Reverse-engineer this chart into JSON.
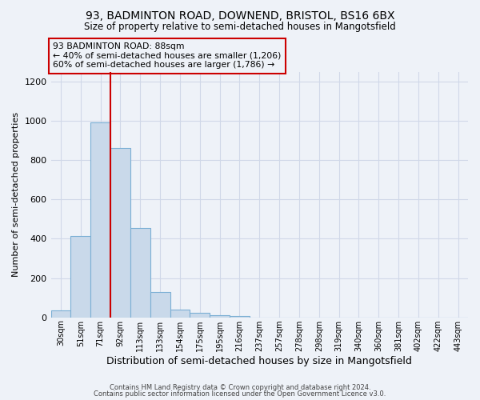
{
  "title1": "93, BADMINTON ROAD, DOWNEND, BRISTOL, BS16 6BX",
  "title2": "Size of property relative to semi-detached houses in Mangotsfield",
  "xlabel": "Distribution of semi-detached houses by size in Mangotsfield",
  "ylabel": "Number of semi-detached properties",
  "footnote1": "Contains HM Land Registry data © Crown copyright and database right 2024.",
  "footnote2": "Contains public sector information licensed under the Open Government Licence v3.0.",
  "bar_labels": [
    "30sqm",
    "51sqm",
    "71sqm",
    "92sqm",
    "113sqm",
    "133sqm",
    "154sqm",
    "175sqm",
    "195sqm",
    "216sqm",
    "237sqm",
    "257sqm",
    "278sqm",
    "298sqm",
    "319sqm",
    "340sqm",
    "360sqm",
    "381sqm",
    "402sqm",
    "422sqm",
    "443sqm"
  ],
  "bar_values": [
    35,
    415,
    990,
    860,
    455,
    130,
    40,
    25,
    10,
    5,
    0,
    0,
    0,
    0,
    0,
    0,
    0,
    0,
    0,
    0,
    0
  ],
  "bar_color": "#c9d9ea",
  "bar_edge_color": "#7bafd4",
  "property_line_x": 2.5,
  "property_line_color": "#cc0000",
  "annotation_title": "93 BADMINTON ROAD: 88sqm",
  "annotation_line1": "← 40% of semi-detached houses are smaller (1,206)",
  "annotation_line2": "60% of semi-detached houses are larger (1,786) →",
  "annotation_box_color": "#cc0000",
  "ylim": [
    0,
    1250
  ],
  "yticks": [
    0,
    200,
    400,
    600,
    800,
    1000,
    1200
  ],
  "grid_color": "#d0d8e8",
  "background_color": "#eef2f8"
}
